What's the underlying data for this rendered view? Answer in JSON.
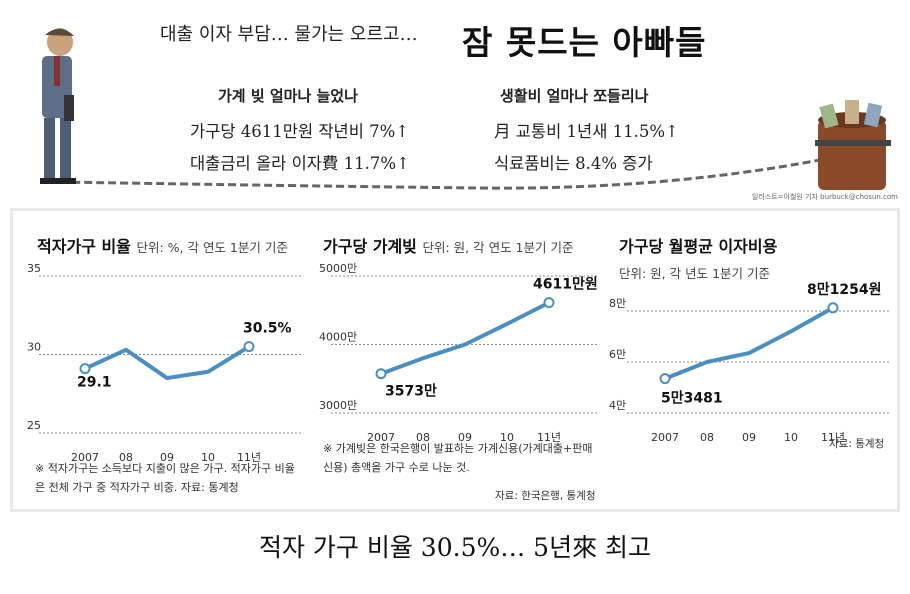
{
  "header": {
    "subtitle": "대출 이자 부담… 물가는 오르고…",
    "headline": "잠 못드는 아빠들",
    "left_col": {
      "title": "가계 빚 얼마나 늘었나",
      "lines": [
        "가구당 4611만원 작년비 7%↑",
        "대출금리 올라 이자費 11.7%↑"
      ]
    },
    "right_col": {
      "title": "생활비 얼마나 쪼들리나",
      "lines": [
        "月 교통비 1년새 11.5%↑",
        "식료품비는 8.4% 증가"
      ]
    },
    "credit": "일러스트=이철원 기자 burbuck@chosun.com"
  },
  "charts": {
    "c1": {
      "title": "적자가구 비율",
      "unit": "단위: %, 각 연도 1분기 기준",
      "note": "※ 적자가구는 소득보다 지출이 많은 가구. 적자가구 비율은 전체 가구 중 적자가구 비중. 자료: 통계청"
    },
    "c2": {
      "title": "가구당 가계빚",
      "unit": "단위: 원, 각 연도 1분기 기준",
      "note": "※ 가계빚은 한국은행이 발표하는 가계신용(가계대출+판매신용) 총액을 가구 수로 나눈 것.",
      "source": "자료: 한국은행, 통계청"
    },
    "c3": {
      "title": "가구당 월평균 이자비용",
      "unit": "단위: 원, 각 년도 1분기 기준",
      "source": "자료: 통계청"
    }
  },
  "chart_data": [
    {
      "type": "line",
      "title": "적자가구 비율",
      "x": [
        "2007",
        "08",
        "09",
        "10",
        "11년"
      ],
      "values": [
        29.1,
        30.3,
        28.5,
        28.9,
        30.5
      ],
      "ylim": [
        25,
        35
      ],
      "y_ticks": [
        "35",
        "30",
        "25"
      ],
      "data_labels": [
        {
          "index": 0,
          "text": "29.1"
        },
        {
          "index": 4,
          "text": "30.5%"
        }
      ],
      "grid": true
    },
    {
      "type": "line",
      "title": "가구당 가계빚",
      "x": [
        "2007",
        "08",
        "09",
        "10",
        "11년"
      ],
      "values": [
        3573,
        3800,
        4000,
        4300,
        4611
      ],
      "ylim": [
        3000,
        5000
      ],
      "y_ticks": [
        "5000만",
        "4000만",
        "3000만"
      ],
      "data_labels": [
        {
          "index": 0,
          "text": "3573만"
        },
        {
          "index": 4,
          "text": "4611만원"
        }
      ],
      "grid": true
    },
    {
      "type": "line",
      "title": "가구당 월평균 이자비용",
      "x": [
        "2007",
        "08",
        "09",
        "10",
        "11년"
      ],
      "values": [
        53481,
        60000,
        63500,
        72000,
        81254
      ],
      "ylim": [
        40000,
        80000
      ],
      "y_ticks": [
        "8만",
        "6만",
        "4만"
      ],
      "data_labels": [
        {
          "index": 0,
          "text": "5만3481"
        },
        {
          "index": 4,
          "text": "8만1254원"
        }
      ],
      "grid": true
    }
  ],
  "colors": {
    "line": "#4a8fc4",
    "grid": "#888888"
  },
  "footer": {
    "headline": "적자 가구 비율 30.5%… 5년來 최고"
  }
}
